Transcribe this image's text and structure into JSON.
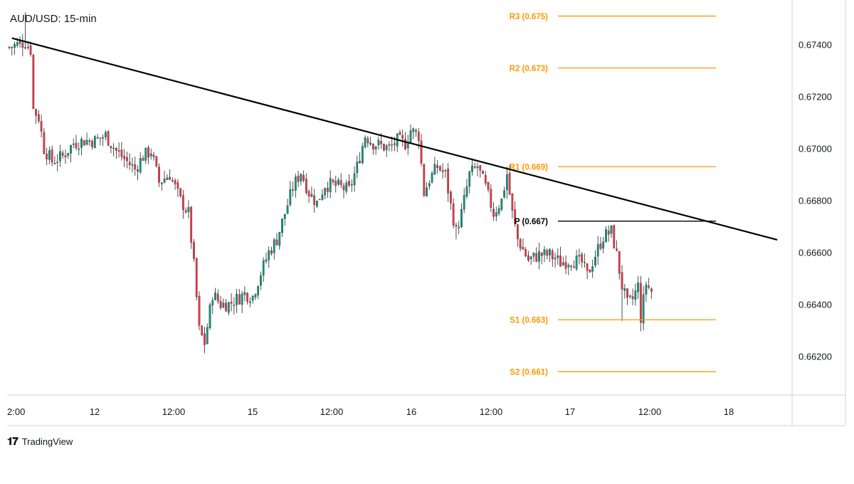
{
  "chart_data": {
    "type": "candlestick",
    "title": "AUD/USD: 15-min",
    "ylim": [
      0.6605,
      0.6755
    ],
    "y_ticks": [
      0.674,
      0.672,
      0.67,
      0.668,
      0.666,
      0.664,
      0.662
    ],
    "y_tick_labels": [
      "0.67400",
      "0.67200",
      "0.67000",
      "0.66800",
      "0.66600",
      "0.66400",
      "0.66200"
    ],
    "x_tick_labels": [
      "2:00",
      "12",
      "12:00",
      "15",
      "12:00",
      "16",
      "12:00",
      "17",
      "12:00",
      "18"
    ],
    "bar_count": 290,
    "colors": {
      "up": "#089981",
      "down": "#f23645",
      "trendline": "#000000",
      "pivot": "#000000",
      "support_resistance": "#ff9800"
    },
    "levels": [
      {
        "label": "R3 (0.675)",
        "value": 0.6751,
        "color": "#ff9800"
      },
      {
        "label": "R2 (0.673)",
        "value": 0.6731,
        "color": "#ff9800"
      },
      {
        "label": "R1 (0.669)",
        "value": 0.6693,
        "color": "#ff9800"
      },
      {
        "label": "P (0.667)",
        "value": 0.6672,
        "color": "#000000"
      },
      {
        "label": "S1 (0.663)",
        "value": 0.6634,
        "color": "#ff9800"
      },
      {
        "label": "S2 (0.661)",
        "value": 0.6614,
        "color": "#ff9800"
      }
    ],
    "trendline": {
      "start": {
        "bar": 1,
        "price": 0.67425
      },
      "end": {
        "bar": 287,
        "price": 0.66648
      }
    },
    "price_path": [
      [
        0,
        0.6739
      ],
      [
        6,
        0.6741
      ],
      [
        8,
        0.6738
      ],
      [
        9,
        0.6715
      ],
      [
        11,
        0.6712
      ],
      [
        13,
        0.67
      ],
      [
        16,
        0.6695
      ],
      [
        20,
        0.6697
      ],
      [
        24,
        0.6702
      ],
      [
        28,
        0.6703
      ],
      [
        32,
        0.6703
      ],
      [
        36,
        0.6705
      ],
      [
        40,
        0.6699
      ],
      [
        44,
        0.6695
      ],
      [
        47,
        0.6692
      ],
      [
        50,
        0.6697
      ],
      [
        53,
        0.6699
      ],
      [
        56,
        0.6687
      ],
      [
        60,
        0.669
      ],
      [
        64,
        0.668
      ],
      [
        67,
        0.6675
      ],
      [
        69,
        0.6655
      ],
      [
        71,
        0.663
      ],
      [
        73,
        0.6625
      ],
      [
        76,
        0.6644
      ],
      [
        79,
        0.664
      ],
      [
        82,
        0.664
      ],
      [
        85,
        0.6642
      ],
      [
        88,
        0.6644
      ],
      [
        91,
        0.6643
      ],
      [
        94,
        0.6652
      ],
      [
        97,
        0.666
      ],
      [
        100,
        0.6665
      ],
      [
        103,
        0.6675
      ],
      [
        106,
        0.6685
      ],
      [
        109,
        0.6691
      ],
      [
        112,
        0.6683
      ],
      [
        115,
        0.6679
      ],
      [
        118,
        0.6686
      ],
      [
        121,
        0.6686
      ],
      [
        124,
        0.6685
      ],
      [
        127,
        0.6684
      ],
      [
        130,
        0.6693
      ],
      [
        133,
        0.6705
      ],
      [
        136,
        0.6702
      ],
      [
        139,
        0.6701
      ],
      [
        142,
        0.67
      ],
      [
        145,
        0.6703
      ],
      [
        148,
        0.6702
      ],
      [
        150,
        0.6707
      ],
      [
        153,
        0.6705
      ],
      [
        155,
        0.6683
      ],
      [
        157,
        0.6688
      ],
      [
        160,
        0.6693
      ],
      [
        163,
        0.669
      ],
      [
        165,
        0.6678
      ],
      [
        167,
        0.6668
      ],
      [
        169,
        0.6675
      ],
      [
        172,
        0.669
      ],
      [
        175,
        0.6693
      ],
      [
        178,
        0.6685
      ],
      [
        181,
        0.6675
      ],
      [
        184,
        0.668
      ],
      [
        186,
        0.669
      ],
      [
        188,
        0.6675
      ],
      [
        190,
        0.6665
      ],
      [
        194,
        0.6657
      ],
      [
        198,
        0.6659
      ],
      [
        202,
        0.6659
      ],
      [
        206,
        0.6656
      ],
      [
        210,
        0.6657
      ],
      [
        214,
        0.6656
      ],
      [
        216,
        0.6651
      ],
      [
        219,
        0.6659
      ],
      [
        222,
        0.6666
      ],
      [
        225,
        0.6668
      ],
      [
        227,
        0.6659
      ],
      [
        229,
        0.6647
      ],
      [
        231,
        0.664
      ],
      [
        233,
        0.6642
      ],
      [
        235,
        0.6647
      ],
      [
        236,
        0.6635
      ],
      [
        238,
        0.6648
      ],
      [
        240,
        0.6645
      ]
    ],
    "spikes": [
      {
        "bar": 6,
        "high": 0.67525
      },
      {
        "bar": 9,
        "low": 0.6728
      },
      {
        "bar": 167,
        "low": 0.6665
      },
      {
        "bar": 186,
        "high": 0.6693
      },
      {
        "bar": 229,
        "low": 0.66335
      },
      {
        "bar": 236,
        "low": 0.66295
      }
    ],
    "xlabel": "",
    "ylabel": ""
  }
}
